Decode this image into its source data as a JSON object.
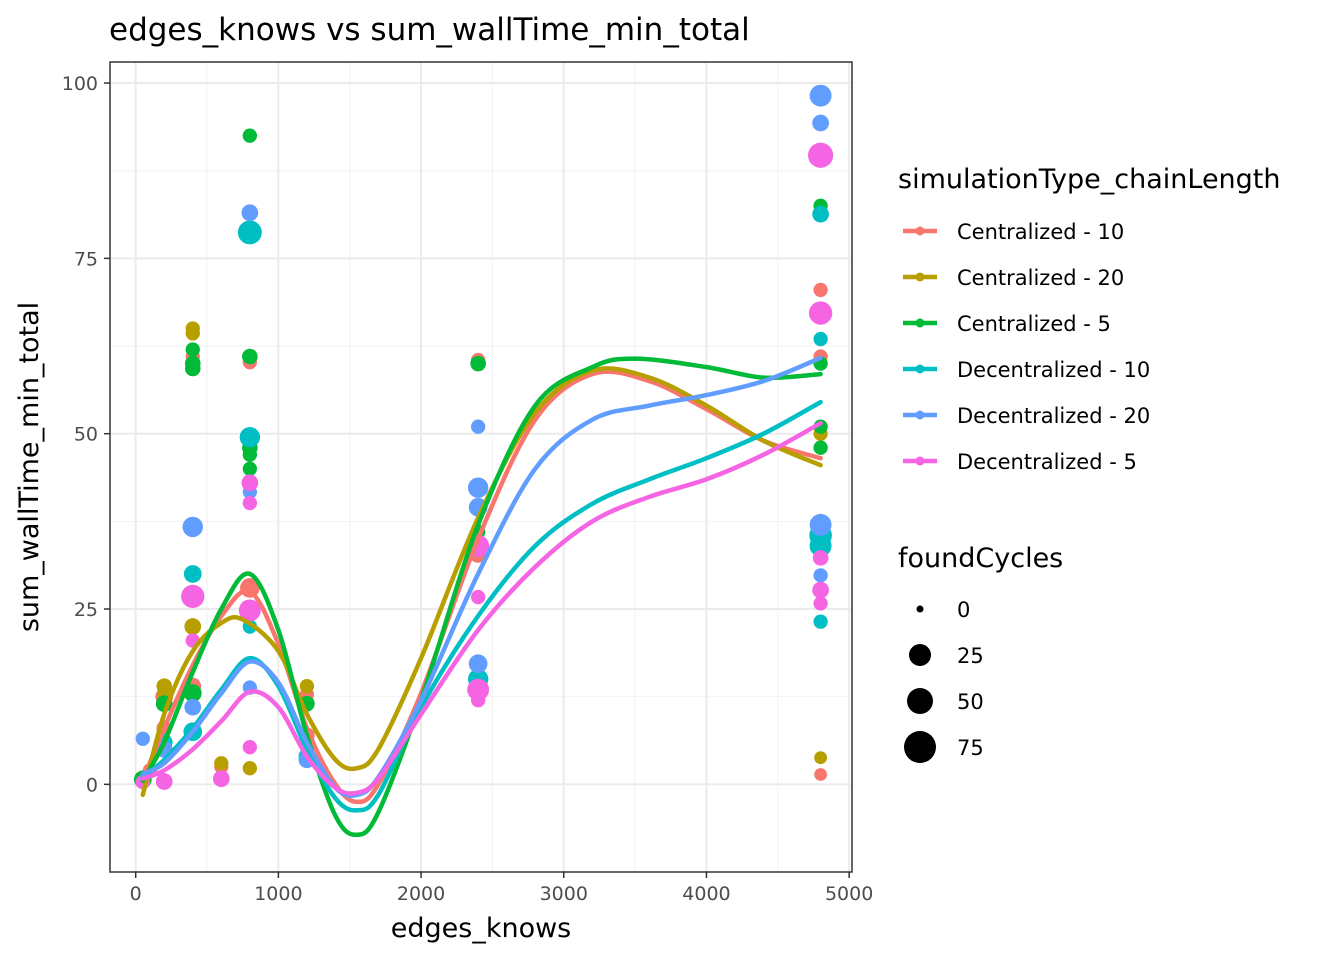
{
  "chart_data": {
    "type": "scatter",
    "title": "edges_knows  vs  sum_wallTime_min_total",
    "xlabel": "edges_knows",
    "ylabel": "sum_wallTime_min_total",
    "xlim": [
      -180,
      5020
    ],
    "ylim": [
      -12.5,
      103
    ],
    "x_ticks": [
      0,
      1000,
      2000,
      3000,
      4000,
      5000
    ],
    "x_tick_labels": [
      "0",
      "1000",
      "2000",
      "3000",
      "4000",
      "5000"
    ],
    "y_ticks": [
      0,
      25,
      50,
      75,
      100
    ],
    "y_tick_labels": [
      "0",
      "25",
      "50",
      "75",
      "100"
    ],
    "grid": true,
    "legend_placement": "right",
    "color_legend_title": "simulationType_chainLength",
    "size_legend_title": "foundCycles",
    "size_legend": [
      {
        "label": "0",
        "value": 0
      },
      {
        "label": "25",
        "value": 25
      },
      {
        "label": "50",
        "value": 50
      },
      {
        "label": "75",
        "value": 75
      }
    ],
    "series": [
      {
        "name": "Centralized - 10",
        "color": "#F8766D",
        "points": [
          {
            "x": 50,
            "y": 0.6,
            "size": 5
          },
          {
            "x": 100,
            "y": 2,
            "size": 3
          },
          {
            "x": 200,
            "y": 8,
            "size": 4
          },
          {
            "x": 200,
            "y": 12.5,
            "size": 6
          },
          {
            "x": 400,
            "y": 61,
            "size": 3
          },
          {
            "x": 400,
            "y": 14,
            "size": 5
          },
          {
            "x": 600,
            "y": 2.5,
            "size": 3
          },
          {
            "x": 800,
            "y": 60.2,
            "size": 3
          },
          {
            "x": 800,
            "y": 28,
            "size": 8
          },
          {
            "x": 1200,
            "y": 12.8,
            "size": 3
          },
          {
            "x": 1200,
            "y": 7,
            "size": 4
          },
          {
            "x": 2400,
            "y": 60.5,
            "size": 3
          },
          {
            "x": 2400,
            "y": 33,
            "size": 8
          },
          {
            "x": 4800,
            "y": 70.5,
            "size": 3
          },
          {
            "x": 4800,
            "y": 61,
            "size": 3
          },
          {
            "x": 4800,
            "y": 1.4,
            "size": 2
          }
        ],
        "smooth": [
          {
            "x": 50,
            "y": 0.6
          },
          {
            "x": 200,
            "y": 8
          },
          {
            "x": 400,
            "y": 17
          },
          {
            "x": 600,
            "y": 24
          },
          {
            "x": 800,
            "y": 27.5
          },
          {
            "x": 1000,
            "y": 20
          },
          {
            "x": 1200,
            "y": 8
          },
          {
            "x": 1400,
            "y": 0
          },
          {
            "x": 1550,
            "y": -2.5
          },
          {
            "x": 1700,
            "y": 0
          },
          {
            "x": 2000,
            "y": 13
          },
          {
            "x": 2400,
            "y": 35
          },
          {
            "x": 2800,
            "y": 52
          },
          {
            "x": 3200,
            "y": 58.5
          },
          {
            "x": 3600,
            "y": 57.5
          },
          {
            "x": 4000,
            "y": 53.5
          },
          {
            "x": 4400,
            "y": 49
          },
          {
            "x": 4800,
            "y": 46.5
          }
        ]
      },
      {
        "name": "Centralized - 20",
        "color": "#B79F00",
        "points": [
          {
            "x": 50,
            "y": 0.8,
            "size": 3
          },
          {
            "x": 200,
            "y": 14,
            "size": 4
          },
          {
            "x": 200,
            "y": 13,
            "size": 3
          },
          {
            "x": 400,
            "y": 65,
            "size": 3
          },
          {
            "x": 400,
            "y": 64.3,
            "size": 3
          },
          {
            "x": 400,
            "y": 22.5,
            "size": 5
          },
          {
            "x": 600,
            "y": 3,
            "size": 3
          },
          {
            "x": 800,
            "y": 49.5,
            "size": 4
          },
          {
            "x": 800,
            "y": 2.3,
            "size": 3
          },
          {
            "x": 1200,
            "y": 14,
            "size": 3
          },
          {
            "x": 2400,
            "y": 17,
            "size": 3
          },
          {
            "x": 4800,
            "y": 50,
            "size": 3
          },
          {
            "x": 4800,
            "y": 3.8,
            "size": 2
          }
        ],
        "smooth": [
          {
            "x": 50,
            "y": -1.5
          },
          {
            "x": 200,
            "y": 10
          },
          {
            "x": 400,
            "y": 19
          },
          {
            "x": 600,
            "y": 23
          },
          {
            "x": 750,
            "y": 23.5
          },
          {
            "x": 1000,
            "y": 19
          },
          {
            "x": 1200,
            "y": 10
          },
          {
            "x": 1400,
            "y": 3.5
          },
          {
            "x": 1550,
            "y": 2.3
          },
          {
            "x": 1700,
            "y": 5
          },
          {
            "x": 2000,
            "y": 18
          },
          {
            "x": 2400,
            "y": 38
          },
          {
            "x": 2800,
            "y": 53
          },
          {
            "x": 3200,
            "y": 59
          },
          {
            "x": 3600,
            "y": 58
          },
          {
            "x": 4000,
            "y": 54
          },
          {
            "x": 4400,
            "y": 49
          },
          {
            "x": 4800,
            "y": 45.5
          }
        ]
      },
      {
        "name": "Centralized - 5",
        "color": "#00BA38",
        "points": [
          {
            "x": 50,
            "y": 0.7,
            "size": 6
          },
          {
            "x": 200,
            "y": 11.5,
            "size": 5
          },
          {
            "x": 400,
            "y": 62,
            "size": 3
          },
          {
            "x": 400,
            "y": 60,
            "size": 4
          },
          {
            "x": 400,
            "y": 59.3,
            "size": 4
          },
          {
            "x": 400,
            "y": 13,
            "size": 6
          },
          {
            "x": 800,
            "y": 92.5,
            "size": 3
          },
          {
            "x": 800,
            "y": 61,
            "size": 4
          },
          {
            "x": 800,
            "y": 48,
            "size": 4
          },
          {
            "x": 800,
            "y": 47,
            "size": 3
          },
          {
            "x": 800,
            "y": 45,
            "size": 3
          },
          {
            "x": 1200,
            "y": 11.5,
            "size": 4
          },
          {
            "x": 2400,
            "y": 60,
            "size": 4
          },
          {
            "x": 2400,
            "y": 36,
            "size": 3
          },
          {
            "x": 2400,
            "y": 13.3,
            "size": 5
          },
          {
            "x": 4800,
            "y": 82.5,
            "size": 3
          },
          {
            "x": 4800,
            "y": 60,
            "size": 3
          },
          {
            "x": 4800,
            "y": 51,
            "size": 3
          },
          {
            "x": 4800,
            "y": 48,
            "size": 3
          }
        ],
        "smooth": [
          {
            "x": 50,
            "y": 0.5
          },
          {
            "x": 200,
            "y": 6
          },
          {
            "x": 400,
            "y": 16
          },
          {
            "x": 600,
            "y": 25
          },
          {
            "x": 800,
            "y": 30
          },
          {
            "x": 1000,
            "y": 22
          },
          {
            "x": 1200,
            "y": 7
          },
          {
            "x": 1400,
            "y": -4.5
          },
          {
            "x": 1550,
            "y": -7.2
          },
          {
            "x": 1700,
            "y": -4
          },
          {
            "x": 2000,
            "y": 12
          },
          {
            "x": 2400,
            "y": 37
          },
          {
            "x": 2800,
            "y": 54
          },
          {
            "x": 3200,
            "y": 59.5
          },
          {
            "x": 3500,
            "y": 60.7
          },
          {
            "x": 4000,
            "y": 59.5
          },
          {
            "x": 4400,
            "y": 58
          },
          {
            "x": 4800,
            "y": 58.5
          }
        ]
      },
      {
        "name": "Decentralized - 10",
        "color": "#00BFC4",
        "points": [
          {
            "x": 50,
            "y": 0.4,
            "size": 3
          },
          {
            "x": 200,
            "y": 6,
            "size": 5
          },
          {
            "x": 400,
            "y": 30,
            "size": 6
          },
          {
            "x": 400,
            "y": 7.5,
            "size": 7
          },
          {
            "x": 800,
            "y": 78.7,
            "size": 14
          },
          {
            "x": 800,
            "y": 49.5,
            "size": 9
          },
          {
            "x": 800,
            "y": 22.5,
            "size": 3
          },
          {
            "x": 1200,
            "y": 4,
            "size": 5
          },
          {
            "x": 2400,
            "y": 15,
            "size": 9
          },
          {
            "x": 4800,
            "y": 81.3,
            "size": 5
          },
          {
            "x": 4800,
            "y": 63.5,
            "size": 3
          },
          {
            "x": 4800,
            "y": 35.5,
            "size": 12
          },
          {
            "x": 4800,
            "y": 34,
            "size": 11
          },
          {
            "x": 4800,
            "y": 23.2,
            "size": 3
          }
        ],
        "smooth": [
          {
            "x": 50,
            "y": 1
          },
          {
            "x": 200,
            "y": 3.5
          },
          {
            "x": 400,
            "y": 8
          },
          {
            "x": 600,
            "y": 13.5
          },
          {
            "x": 800,
            "y": 18
          },
          {
            "x": 1000,
            "y": 14
          },
          {
            "x": 1200,
            "y": 5
          },
          {
            "x": 1400,
            "y": -2
          },
          {
            "x": 1550,
            "y": -3.7
          },
          {
            "x": 1700,
            "y": -1.5
          },
          {
            "x": 2000,
            "y": 11
          },
          {
            "x": 2400,
            "y": 24
          },
          {
            "x": 2800,
            "y": 34
          },
          {
            "x": 3200,
            "y": 40
          },
          {
            "x": 3600,
            "y": 43.5
          },
          {
            "x": 4000,
            "y": 46.5
          },
          {
            "x": 4400,
            "y": 50
          },
          {
            "x": 4800,
            "y": 54.5
          }
        ]
      },
      {
        "name": "Decentralized - 20",
        "color": "#619CFF",
        "points": [
          {
            "x": 50,
            "y": 6.5,
            "size": 3
          },
          {
            "x": 200,
            "y": 5,
            "size": 5
          },
          {
            "x": 400,
            "y": 36.7,
            "size": 9
          },
          {
            "x": 400,
            "y": 11,
            "size": 5
          },
          {
            "x": 800,
            "y": 81.5,
            "size": 5
          },
          {
            "x": 800,
            "y": 41.7,
            "size": 3
          },
          {
            "x": 800,
            "y": 13.8,
            "size": 3
          },
          {
            "x": 1200,
            "y": 3.5,
            "size": 5
          },
          {
            "x": 2400,
            "y": 51,
            "size": 3
          },
          {
            "x": 2400,
            "y": 42.3,
            "size": 9
          },
          {
            "x": 2400,
            "y": 39.5,
            "size": 7
          },
          {
            "x": 2400,
            "y": 17.2,
            "size": 7
          },
          {
            "x": 4800,
            "y": 98.2,
            "size": 11
          },
          {
            "x": 4800,
            "y": 94.3,
            "size": 5
          },
          {
            "x": 4800,
            "y": 37,
            "size": 11
          },
          {
            "x": 4800,
            "y": 29.8,
            "size": 3
          }
        ],
        "smooth": [
          {
            "x": 50,
            "y": 1.5
          },
          {
            "x": 200,
            "y": 3
          },
          {
            "x": 400,
            "y": 7.5
          },
          {
            "x": 600,
            "y": 13
          },
          {
            "x": 800,
            "y": 17.5
          },
          {
            "x": 1000,
            "y": 14.5
          },
          {
            "x": 1200,
            "y": 6
          },
          {
            "x": 1400,
            "y": -0.5
          },
          {
            "x": 1550,
            "y": -1.5
          },
          {
            "x": 1700,
            "y": 1
          },
          {
            "x": 2000,
            "y": 12
          },
          {
            "x": 2400,
            "y": 30
          },
          {
            "x": 2800,
            "y": 45
          },
          {
            "x": 3200,
            "y": 52
          },
          {
            "x": 3600,
            "y": 54
          },
          {
            "x": 4000,
            "y": 55.5
          },
          {
            "x": 4400,
            "y": 57.5
          },
          {
            "x": 4800,
            "y": 60.8
          }
        ]
      },
      {
        "name": "Decentralized - 5",
        "color": "#F564E3",
        "points": [
          {
            "x": 50,
            "y": 0.3,
            "size": 3
          },
          {
            "x": 200,
            "y": 0.4,
            "size": 5
          },
          {
            "x": 400,
            "y": 26.8,
            "size": 13
          },
          {
            "x": 400,
            "y": 20.5,
            "size": 3
          },
          {
            "x": 600,
            "y": 0.8,
            "size": 5
          },
          {
            "x": 800,
            "y": 43,
            "size": 5
          },
          {
            "x": 800,
            "y": 40.1,
            "size": 3
          },
          {
            "x": 800,
            "y": 24.8,
            "size": 11
          },
          {
            "x": 800,
            "y": 5.3,
            "size": 3
          },
          {
            "x": 1200,
            "y": 5.8,
            "size": 5
          },
          {
            "x": 2400,
            "y": 34,
            "size": 11
          },
          {
            "x": 2400,
            "y": 26.7,
            "size": 3
          },
          {
            "x": 2400,
            "y": 13.5,
            "size": 11
          },
          {
            "x": 2400,
            "y": 12,
            "size": 3
          },
          {
            "x": 4800,
            "y": 89.7,
            "size": 16
          },
          {
            "x": 4800,
            "y": 67.2,
            "size": 13
          },
          {
            "x": 4800,
            "y": 32.3,
            "size": 4
          },
          {
            "x": 4800,
            "y": 27.7,
            "size": 5
          },
          {
            "x": 4800,
            "y": 25.8,
            "size": 3
          }
        ],
        "smooth": [
          {
            "x": 50,
            "y": 0.8
          },
          {
            "x": 200,
            "y": 2
          },
          {
            "x": 400,
            "y": 5
          },
          {
            "x": 600,
            "y": 9
          },
          {
            "x": 800,
            "y": 13.2
          },
          {
            "x": 1000,
            "y": 11
          },
          {
            "x": 1200,
            "y": 4
          },
          {
            "x": 1400,
            "y": -0.5
          },
          {
            "x": 1550,
            "y": -1.2
          },
          {
            "x": 1700,
            "y": 0.8
          },
          {
            "x": 2000,
            "y": 10
          },
          {
            "x": 2400,
            "y": 22
          },
          {
            "x": 2800,
            "y": 31
          },
          {
            "x": 3200,
            "y": 37.5
          },
          {
            "x": 3600,
            "y": 41
          },
          {
            "x": 4000,
            "y": 43.5
          },
          {
            "x": 4400,
            "y": 47
          },
          {
            "x": 4800,
            "y": 51.5
          }
        ]
      }
    ]
  }
}
